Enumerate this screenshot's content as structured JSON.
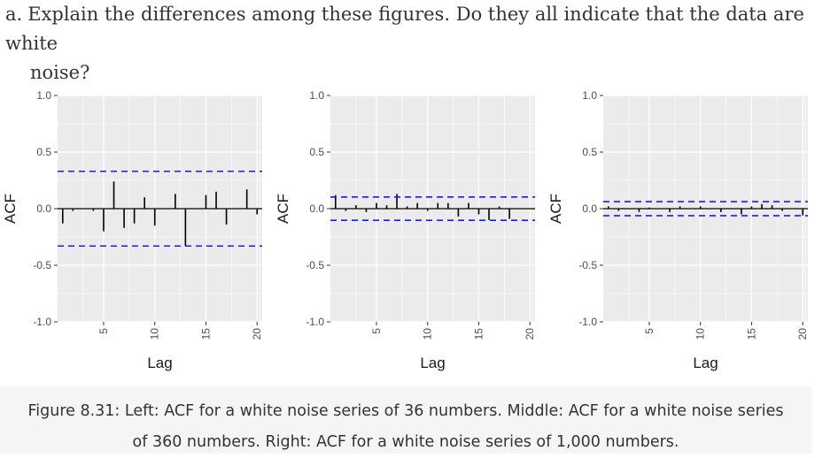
{
  "question": {
    "marker": "a.",
    "line1": "Explain the differences among these figures. Do they all indicate that the data are white",
    "line2": "noise?"
  },
  "caption": {
    "line1": "Figure 8.31: Left: ACF for a white noise series of 36 numbers. Middle: ACF for a white noise series",
    "line2": "of 360 numbers. Right: ACF for a white noise series of 1,000 numbers."
  },
  "colors": {
    "panel": "#ebebeb",
    "grid": "#ffffff",
    "bar": "#000000",
    "bound": "#1a1aff"
  },
  "chart_data": [
    {
      "type": "bar",
      "xlabel": "Lag",
      "ylabel": "ACF",
      "ylim": [
        -1.0,
        1.0
      ],
      "xlim": [
        0.5,
        20.5
      ],
      "yticks": [
        "1.0",
        "0.5",
        "0.0",
        "-0.5",
        "-1.0"
      ],
      "ytick_values": [
        1.0,
        0.5,
        0.0,
        -0.5,
        -1.0
      ],
      "xticks": [
        "5",
        "10",
        "15",
        "20"
      ],
      "xtick_values": [
        5,
        10,
        15,
        20
      ],
      "bounds": [
        0.33,
        -0.33
      ],
      "lags": [
        1,
        2,
        3,
        4,
        5,
        6,
        7,
        8,
        9,
        10,
        11,
        12,
        13,
        14,
        15,
        16,
        17,
        18,
        19,
        20
      ],
      "values": [
        -0.13,
        -0.02,
        0.0,
        -0.02,
        -0.2,
        0.24,
        -0.17,
        -0.13,
        0.1,
        -0.15,
        0.0,
        0.13,
        -0.33,
        0.0,
        0.12,
        0.15,
        -0.14,
        0.0,
        0.17,
        -0.05
      ]
    },
    {
      "type": "bar",
      "xlabel": "Lag",
      "ylabel": "ACF",
      "ylim": [
        -1.0,
        1.0
      ],
      "xlim": [
        0.5,
        20.5
      ],
      "yticks": [
        "1.0",
        "0.5",
        "0.0",
        "-0.5",
        "-1.0"
      ],
      "ytick_values": [
        1.0,
        0.5,
        0.0,
        -0.5,
        -1.0
      ],
      "xticks": [
        "5",
        "10",
        "15",
        "20"
      ],
      "xtick_values": [
        5,
        10,
        15,
        20
      ],
      "bounds": [
        0.103,
        -0.103
      ],
      "lags": [
        1,
        2,
        3,
        4,
        5,
        6,
        7,
        8,
        9,
        10,
        11,
        12,
        13,
        14,
        15,
        16,
        17,
        18,
        19,
        20
      ],
      "values": [
        0.12,
        -0.02,
        0.03,
        -0.03,
        0.05,
        0.03,
        0.13,
        0.02,
        0.05,
        -0.02,
        0.05,
        0.05,
        -0.07,
        0.05,
        -0.05,
        -0.1,
        0.02,
        -0.09,
        0.0,
        0.0
      ]
    },
    {
      "type": "bar",
      "xlabel": "Lag",
      "ylabel": "ACF",
      "ylim": [
        -1.0,
        1.0
      ],
      "xlim": [
        0.5,
        20.5
      ],
      "yticks": [
        "1.0",
        "0.5",
        "0.0",
        "-0.5",
        "-1.0"
      ],
      "ytick_values": [
        1.0,
        0.5,
        0.0,
        -0.5,
        -1.0
      ],
      "xticks": [
        "5",
        "10",
        "15",
        "20"
      ],
      "xtick_values": [
        5,
        10,
        15,
        20
      ],
      "bounds": [
        0.062,
        -0.062
      ],
      "lags": [
        1,
        2,
        3,
        4,
        5,
        6,
        7,
        8,
        9,
        10,
        11,
        12,
        13,
        14,
        15,
        16,
        17,
        18,
        19,
        20
      ],
      "values": [
        0.02,
        -0.02,
        0.0,
        -0.03,
        0.01,
        0.0,
        -0.03,
        0.02,
        0.0,
        0.02,
        0.0,
        -0.03,
        0.0,
        -0.05,
        0.02,
        0.04,
        0.03,
        -0.02,
        0.0,
        -0.06
      ]
    }
  ]
}
